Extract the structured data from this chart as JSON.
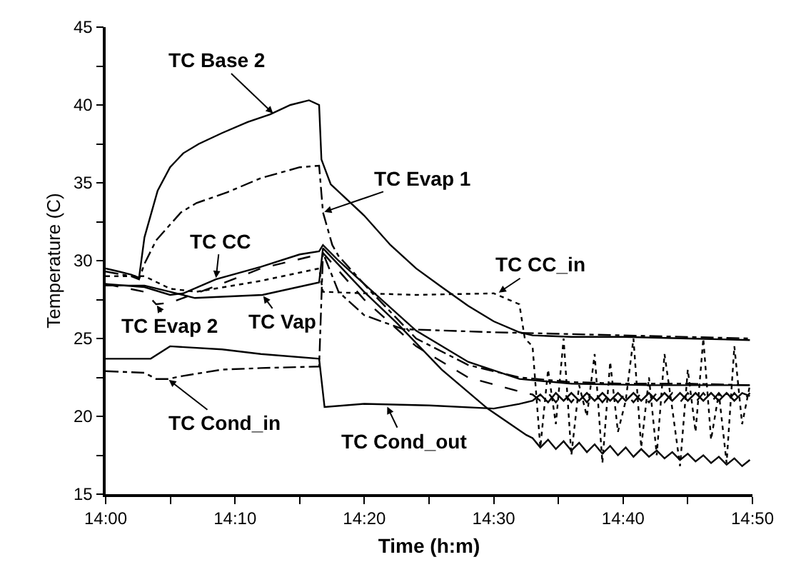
{
  "chart_data": {
    "type": "line",
    "xlabel": "Time (h:m)",
    "ylabel": "Temperature (C)",
    "xlim": [
      14,
      14.8333
    ],
    "ylim": [
      15,
      45
    ],
    "xticks": [
      {
        "value": 14,
        "label": "14:00"
      },
      {
        "value": 14.0833,
        "label": null
      },
      {
        "value": 14.1667,
        "label": "14:10"
      },
      {
        "value": 14.25,
        "label": null
      },
      {
        "value": 14.3333,
        "label": "14:20"
      },
      {
        "value": 14.4167,
        "label": null
      },
      {
        "value": 14.5,
        "label": "14:30"
      },
      {
        "value": 14.5833,
        "label": null
      },
      {
        "value": 14.6667,
        "label": "14:40"
      },
      {
        "value": 14.75,
        "label": null
      },
      {
        "value": 14.8333,
        "label": "14:50"
      }
    ],
    "yticks": [
      15,
      {
        "value": 17.5,
        "label": null
      },
      20,
      {
        "value": 22.5,
        "label": null
      },
      25,
      {
        "value": 27.5,
        "label": null
      },
      30,
      {
        "value": 32.5,
        "label": null
      },
      35,
      {
        "value": 37.5,
        "label": null
      },
      40,
      {
        "value": 42.5,
        "label": null
      },
      45
    ],
    "grid": false,
    "series": [
      {
        "color": "#000000",
        "line_style": "solid",
        "x": [
          14,
          14.017,
          14.033,
          14.043,
          14.05,
          14.067,
          14.083,
          14.1,
          14.12,
          14.15,
          14.183,
          14.212,
          14.238,
          14.262,
          14.275,
          14.278,
          14.29,
          14.333,
          14.367,
          14.4,
          14.433,
          14.467,
          14.5,
          14.533,
          14.55,
          14.6,
          14.667,
          14.75,
          14.83
        ],
        "values": [
          29.5,
          29.3,
          29.1,
          28.9,
          31.5,
          34.5,
          36.0,
          36.9,
          37.5,
          38.2,
          38.9,
          39.4,
          40.0,
          40.3,
          40.0,
          36.5,
          34.9,
          32.9,
          31.0,
          29.5,
          28.3,
          27.1,
          26.1,
          25.4,
          25.2,
          25.1,
          25.1,
          25.0,
          24.9
        ]
      },
      {
        "color": "#000000",
        "line_style": "dashdot",
        "x": [
          14,
          14.033,
          14.043,
          14.05,
          14.065,
          14.097,
          14.117,
          14.157,
          14.2,
          14.25,
          14.275,
          14.28,
          14.292,
          14.3,
          14.342,
          14.4,
          14.467,
          14.533,
          14.6,
          14.667,
          14.75,
          14.83
        ],
        "values": [
          29.3,
          29.0,
          28.8,
          29.8,
          31.3,
          33.1,
          33.7,
          34.4,
          35.3,
          36.0,
          36.1,
          33.1,
          31.0,
          30.3,
          28.0,
          25.0,
          23.3,
          22.5,
          22.2,
          22.1,
          22.1,
          22.0
        ]
      },
      {
        "color": "#000000",
        "line_style": "solid",
        "x": [
          14,
          14.05,
          14.083,
          14.1,
          14.142,
          14.2,
          14.25,
          14.275,
          14.28,
          14.3,
          14.333,
          14.4,
          14.467,
          14.533,
          14.6,
          14.7,
          14.83
        ],
        "values": [
          28.5,
          28.3,
          27.8,
          27.9,
          28.8,
          29.6,
          30.4,
          30.6,
          31.0,
          30.0,
          28.5,
          25.5,
          23.5,
          22.4,
          22.1,
          22.0,
          22.0
        ]
      },
      {
        "color": "#000000",
        "line_style": "dashed",
        "x": [
          14,
          14.05,
          14.065,
          14.083,
          14.133,
          14.2,
          14.275,
          14.28,
          14.333,
          14.4,
          14.467,
          14.533,
          14.55,
          14.56,
          14.57,
          14.58,
          14.59,
          14.6,
          14.61,
          14.62,
          14.63,
          14.64,
          14.65,
          14.66,
          14.67,
          14.68,
          14.69,
          14.7,
          14.71,
          14.72,
          14.73,
          14.74,
          14.75,
          14.76,
          14.77,
          14.78,
          14.79,
          14.8,
          14.81,
          14.82,
          14.83
        ],
        "values": [
          28.5,
          28.0,
          27.2,
          27.3,
          28.2,
          29.5,
          30.4,
          30.5,
          27.5,
          24.5,
          22.5,
          21.6,
          21.4,
          21.0,
          21.5,
          20.9,
          21.5,
          20.9,
          21.5,
          20.9,
          21.5,
          20.9,
          21.5,
          20.9,
          21.5,
          20.9,
          21.5,
          20.9,
          21.5,
          20.9,
          21.5,
          20.9,
          21.5,
          20.9,
          21.5,
          20.9,
          21.5,
          20.9,
          21.5,
          20.9,
          21.5
        ]
      },
      {
        "color": "#000000",
        "line_style": "solid",
        "x": [
          14,
          14.05,
          14.083,
          14.115,
          14.202,
          14.275,
          14.28,
          14.333,
          14.375,
          14.433,
          14.492,
          14.542,
          14.55,
          14.56,
          14.57,
          14.58,
          14.59,
          14.6,
          14.61,
          14.62,
          14.63,
          14.64,
          14.65,
          14.66,
          14.67,
          14.68,
          14.69,
          14.7,
          14.71,
          14.72,
          14.73,
          14.74,
          14.75,
          14.76,
          14.77,
          14.78,
          14.79,
          14.8,
          14.81,
          14.82,
          14.83
        ],
        "values": [
          28.4,
          28.4,
          28.0,
          27.6,
          27.8,
          28.6,
          30.8,
          28.0,
          26.0,
          23.0,
          20.5,
          18.8,
          18.6,
          18.0,
          18.5,
          17.9,
          18.4,
          17.8,
          18.3,
          17.7,
          18.2,
          17.6,
          18.1,
          17.5,
          18.0,
          17.4,
          17.9,
          17.4,
          17.8,
          17.3,
          17.7,
          17.2,
          17.6,
          17.1,
          17.5,
          17.0,
          17.4,
          16.9,
          17.3,
          16.8,
          17.2
        ]
      },
      {
        "color": "#000000",
        "line_style": "dotted",
        "x": [
          14,
          14.05,
          14.083,
          14.117,
          14.2,
          14.275,
          14.28,
          14.333,
          14.4,
          14.5,
          14.533,
          14.54,
          14.55,
          14.56,
          14.57,
          14.58,
          14.59,
          14.6,
          14.61,
          14.62,
          14.63,
          14.64,
          14.65,
          14.66,
          14.67,
          14.68,
          14.69,
          14.7,
          14.71,
          14.72,
          14.73,
          14.74,
          14.75,
          14.76,
          14.77,
          14.78,
          14.79,
          14.8,
          14.81,
          14.82,
          14.83
        ],
        "values": [
          29.0,
          29.0,
          28.2,
          28.0,
          28.7,
          29.5,
          28.0,
          27.9,
          27.8,
          27.9,
          27.2,
          25.0,
          24.5,
          18.0,
          23.0,
          19.5,
          25.0,
          17.5,
          22.0,
          20.0,
          24.0,
          17.0,
          23.5,
          19.0,
          21.0,
          25.0,
          18.0,
          22.5,
          17.5,
          24.0,
          20.5,
          16.8,
          23.0,
          19.0,
          25.0,
          18.5,
          21.5,
          17.0,
          24.5,
          19.5,
          22.0
        ]
      },
      {
        "color": "#000000",
        "line_style": "solid",
        "x": [
          14,
          14.058,
          14.083,
          14.15,
          14.2,
          14.275,
          14.282,
          14.333,
          14.417,
          14.5,
          14.533,
          14.55,
          14.56,
          14.57,
          14.58,
          14.59,
          14.6,
          14.61,
          14.62,
          14.63,
          14.64,
          14.65,
          14.66,
          14.67,
          14.68,
          14.69,
          14.7,
          14.71,
          14.72,
          14.73,
          14.74,
          14.75,
          14.76,
          14.77,
          14.78,
          14.79,
          14.8,
          14.81,
          14.82,
          14.83
        ],
        "values": [
          23.7,
          23.7,
          24.5,
          24.3,
          24.0,
          23.7,
          20.6,
          20.8,
          20.7,
          20.5,
          20.8,
          21.0,
          21.4,
          20.9,
          21.5,
          21.0,
          21.5,
          21.0,
          21.5,
          21.0,
          21.5,
          21.0,
          21.5,
          21.0,
          21.5,
          21.0,
          21.5,
          21.0,
          21.5,
          21.0,
          21.5,
          21.0,
          21.5,
          21.0,
          21.5,
          21.0,
          21.5,
          21.0,
          21.5,
          21.3
        ]
      },
      {
        "color": "#000000",
        "line_style": "dashdot",
        "x": [
          14,
          14.05,
          14.065,
          14.08,
          14.1,
          14.15,
          14.2,
          14.275,
          14.28,
          14.3,
          14.333,
          14.383,
          14.5,
          14.667,
          14.83
        ],
        "values": [
          22.9,
          22.8,
          22.4,
          22.4,
          22.6,
          23.0,
          23.1,
          23.2,
          30.5,
          28.0,
          26.5,
          25.6,
          25.4,
          25.2,
          25.0
        ]
      }
    ],
    "annotations": [
      {
        "text": "TC Base 2",
        "x": 14.217,
        "y": 39.4
      },
      {
        "text": "TC Evap 1",
        "x": 14.28,
        "y": 33.1
      },
      {
        "text": "TC CC",
        "x": 14.142,
        "y": 28.8
      },
      {
        "text": "TC Evap 2",
        "x": 14.065,
        "y": 27.2
      },
      {
        "text": "TC Vap",
        "x": 14.202,
        "y": 27.8
      },
      {
        "text": "TC CC_in",
        "x": 14.505,
        "y": 27.9
      },
      {
        "text": "TC Cond_in",
        "x": 14.08,
        "y": 22.4
      },
      {
        "text": "TC Cond_out",
        "x": 14.362,
        "y": 20.7
      }
    ]
  }
}
